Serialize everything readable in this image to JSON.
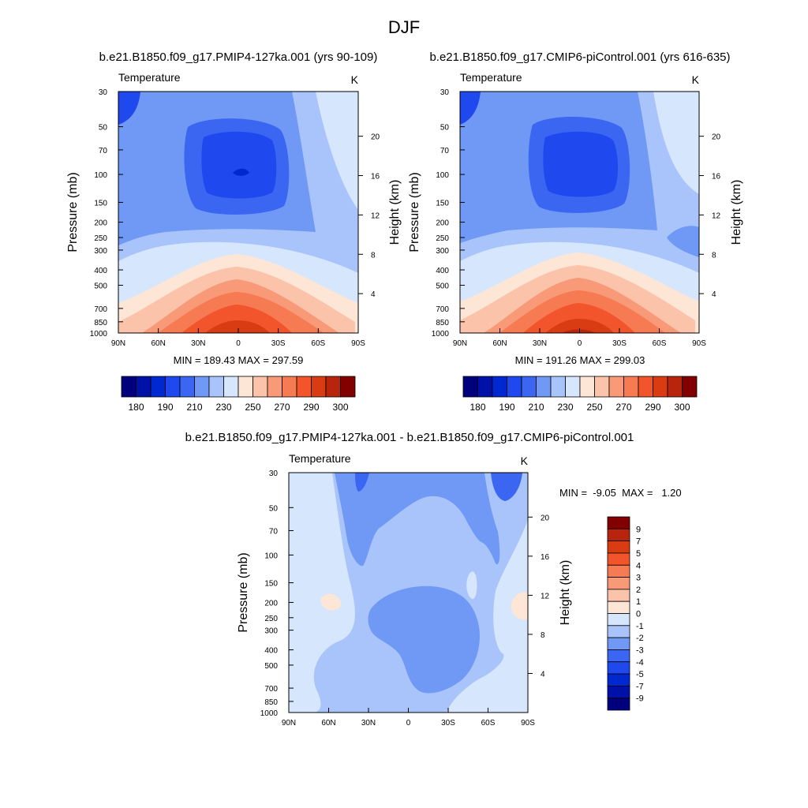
{
  "title": "DJF",
  "chart_data": [
    {
      "type": "heatmap",
      "subtitle": "b.e21.B1850.f09_g17.PMIP4-127ka.001 (yrs 90-109)",
      "label_left": "Temperature",
      "label_right": "K",
      "ylabel": "Pressure (mb)",
      "ylabel_right": "Height (km)",
      "x_ticks": [
        "90N",
        "60N",
        "30N",
        "0",
        "30S",
        "60S",
        "90S"
      ],
      "y_ticks": [
        "30",
        "50",
        "70",
        "100",
        "150",
        "200",
        "250",
        "300",
        "400",
        "500",
        "700",
        "850",
        "1000"
      ],
      "y_ticks_right": [
        "20",
        "16",
        "12",
        "8",
        "4"
      ],
      "stats": "MIN = 189.43  MAX = 297.59",
      "min": 189.43,
      "max": 297.59,
      "colorbar_labels": [
        "180",
        "190",
        "210",
        "230",
        "250",
        "270",
        "290",
        "300"
      ],
      "zmin": 189.43,
      "zmax": 297.59
    },
    {
      "type": "heatmap",
      "subtitle": "b.e21.B1850.f09_g17.CMIP6-piControl.001 (yrs 616-635)",
      "label_left": "Temperature",
      "label_right": "K",
      "ylabel": "Pressure (mb)",
      "ylabel_right": "Height (km)",
      "x_ticks": [
        "90N",
        "60N",
        "30N",
        "0",
        "30S",
        "60S",
        "90S"
      ],
      "y_ticks": [
        "30",
        "50",
        "70",
        "100",
        "150",
        "200",
        "250",
        "300",
        "400",
        "500",
        "700",
        "850",
        "1000"
      ],
      "y_ticks_right": [
        "20",
        "16",
        "12",
        "8",
        "4"
      ],
      "stats": "MIN = 191.26  MAX = 299.03",
      "min": 191.26,
      "max": 299.03,
      "colorbar_labels": [
        "180",
        "190",
        "210",
        "230",
        "250",
        "270",
        "290",
        "300"
      ],
      "zmin": 191.26,
      "zmax": 299.03
    },
    {
      "type": "heatmap",
      "subtitle": "b.e21.B1850.f09_g17.PMIP4-127ka.001 - b.e21.B1850.f09_g17.CMIP6-piControl.001",
      "label_left": "Temperature",
      "label_right": "K",
      "ylabel": "Pressure (mb)",
      "ylabel_right": "Height (km)",
      "x_ticks": [
        "90N",
        "60N",
        "30N",
        "0",
        "30S",
        "60S",
        "90S"
      ],
      "y_ticks": [
        "30",
        "50",
        "70",
        "100",
        "150",
        "200",
        "250",
        "300",
        "400",
        "500",
        "700",
        "850",
        "1000"
      ],
      "y_ticks_right": [
        "20",
        "16",
        "12",
        "8",
        "4"
      ],
      "stats": "MIN =  -9.05  MAX =   1.20",
      "min": -9.05,
      "max": 1.2,
      "colorbar_labels": [
        "9",
        "7",
        "5",
        "4",
        "3",
        "2",
        "1",
        "0",
        "-1",
        "-2",
        "-3",
        "-4",
        "-5",
        "-7",
        "-9"
      ]
    }
  ],
  "colors": {
    "temperature_scale": [
      "#00007f",
      "#0011a8",
      "#0028d0",
      "#1f48ee",
      "#3a66f2",
      "#7099f5",
      "#a8c4fa",
      "#d6e6fd",
      "#fde6d6",
      "#fbc3aa",
      "#f89a78",
      "#f67a52",
      "#f2542b",
      "#d93b12",
      "#b8240c",
      "#820000"
    ],
    "difference_scale": [
      "#820000",
      "#b8240c",
      "#d93b12",
      "#f2542b",
      "#f67a52",
      "#f89a78",
      "#fbc3aa",
      "#fde6d6",
      "#d6e6fd",
      "#a8c4fa",
      "#7099f5",
      "#3a66f2",
      "#1f48ee",
      "#0028d0",
      "#0011a8",
      "#00007f"
    ]
  }
}
